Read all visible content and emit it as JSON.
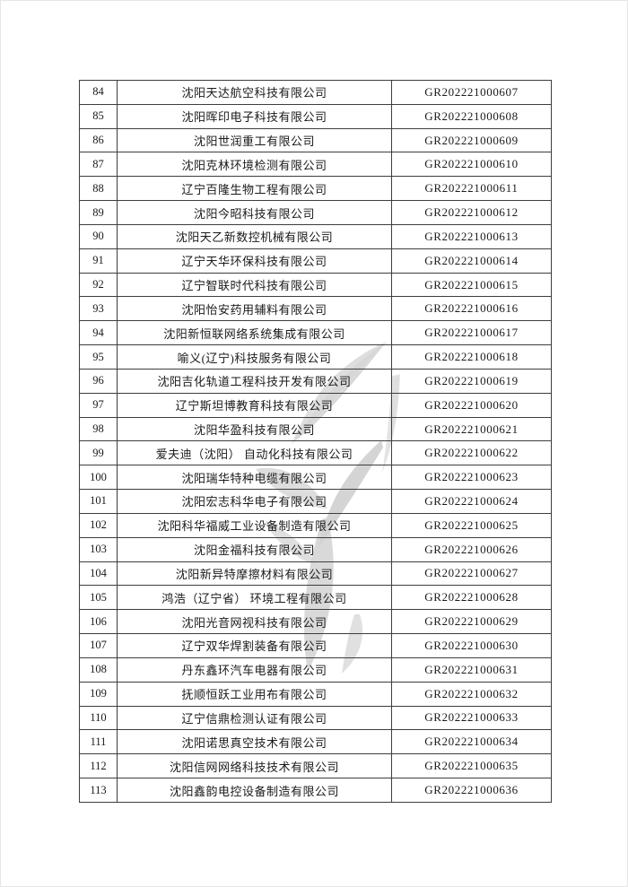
{
  "page": {
    "background_color": "#ffffff",
    "edge_color": "#e6e6e6"
  },
  "watermark": {
    "description": "faint gray emblem of curved swoosh strokes behind table",
    "color_main": "#d2d2d2",
    "color_light": "#dedede"
  },
  "table": {
    "border_color": "#3d3d3d",
    "columns": {
      "index": "row number",
      "name": "company name",
      "code": "certificate number"
    },
    "rows": [
      {
        "num": "84",
        "name": "沈阳天达航空科技有限公司",
        "code": "GR202221000607"
      },
      {
        "num": "85",
        "name": "沈阳晖印电子科技有限公司",
        "code": "GR202221000608"
      },
      {
        "num": "86",
        "name": "沈阳世润重工有限公司",
        "code": "GR202221000609"
      },
      {
        "num": "87",
        "name": "沈阳克林环境检测有限公司",
        "code": "GR202221000610"
      },
      {
        "num": "88",
        "name": "辽宁百隆生物工程有限公司",
        "code": "GR202221000611"
      },
      {
        "num": "89",
        "name": "沈阳今昭科技有限公司",
        "code": "GR202221000612"
      },
      {
        "num": "90",
        "name": "沈阳天乙新数控机械有限公司",
        "code": "GR202221000613"
      },
      {
        "num": "91",
        "name": "辽宁天华环保科技有限公司",
        "code": "GR202221000614"
      },
      {
        "num": "92",
        "name": "辽宁智联时代科技有限公司",
        "code": "GR202221000615"
      },
      {
        "num": "93",
        "name": "沈阳怡安药用辅料有限公司",
        "code": "GR202221000616"
      },
      {
        "num": "94",
        "name": "沈阳新恒联网络系统集成有限公司",
        "code": "GR202221000617"
      },
      {
        "num": "95",
        "name": "喻义(辽宁)科技服务有限公司",
        "code": "GR202221000618"
      },
      {
        "num": "96",
        "name": "沈阳吉化轨道工程科技开发有限公司",
        "code": "GR202221000619"
      },
      {
        "num": "97",
        "name": "辽宁斯坦博教育科技有限公司",
        "code": "GR202221000620"
      },
      {
        "num": "98",
        "name": "沈阳华盈科技有限公司",
        "code": "GR202221000621"
      },
      {
        "num": "99",
        "name": "爱夫迪（沈阳） 自动化科技有限公司",
        "code": "GR202221000622"
      },
      {
        "num": "100",
        "name": "沈阳瑞华特种电缆有限公司",
        "code": "GR202221000623"
      },
      {
        "num": "101",
        "name": "沈阳宏志科华电子有限公司",
        "code": "GR202221000624"
      },
      {
        "num": "102",
        "name": "沈阳科华福威工业设备制造有限公司",
        "code": "GR202221000625"
      },
      {
        "num": "103",
        "name": "沈阳金福科技有限公司",
        "code": "GR202221000626"
      },
      {
        "num": "104",
        "name": "沈阳新异特摩擦材料有限公司",
        "code": "GR202221000627"
      },
      {
        "num": "105",
        "name": "鸿浩（辽宁省） 环境工程有限公司",
        "code": "GR202221000628"
      },
      {
        "num": "106",
        "name": "沈阳光音网视科技有限公司",
        "code": "GR202221000629"
      },
      {
        "num": "107",
        "name": "辽宁双华焊割装备有限公司",
        "code": "GR202221000630"
      },
      {
        "num": "108",
        "name": "丹东鑫环汽车电器有限公司",
        "code": "GR202221000631"
      },
      {
        "num": "109",
        "name": "抚顺恒跃工业用布有限公司",
        "code": "GR202221000632"
      },
      {
        "num": "110",
        "name": "辽宁信鼎检测认证有限公司",
        "code": "GR202221000633"
      },
      {
        "num": "111",
        "name": "沈阳诺思真空技术有限公司",
        "code": "GR202221000634"
      },
      {
        "num": "112",
        "name": "沈阳信网网络科技技术有限公司",
        "code": "GR202221000635"
      },
      {
        "num": "113",
        "name": "沈阳鑫韵电控设备制造有限公司",
        "code": "GR202221000636"
      }
    ]
  }
}
